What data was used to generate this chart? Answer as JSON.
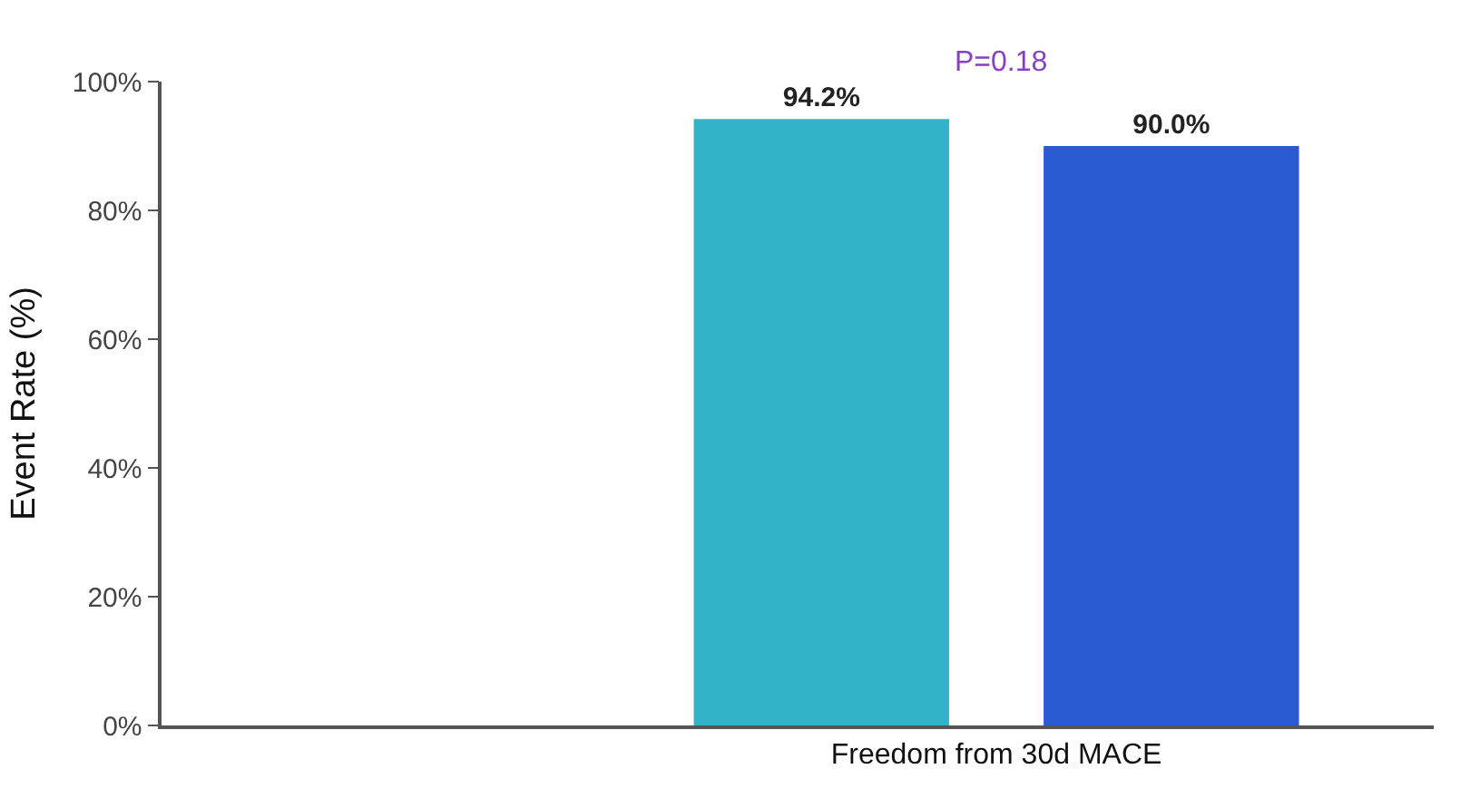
{
  "chart_data": {
    "type": "bar",
    "ylabel": "Event Rate (%)",
    "categories": [
      "Freedom from 30d MACE"
    ],
    "series": [
      {
        "color": "#33b4c6",
        "values": [
          94.2
        ],
        "value_labels": [
          "94.2%"
        ]
      },
      {
        "color": "#2b5bd3",
        "values": [
          90.0
        ],
        "value_labels": [
          "90.0%"
        ]
      }
    ],
    "ylim": [
      0,
      100
    ],
    "yticks": [
      {
        "value": 0,
        "label": "0%"
      },
      {
        "value": 20,
        "label": "20%"
      },
      {
        "value": 40,
        "label": "40%"
      },
      {
        "value": 60,
        "label": "60%"
      },
      {
        "value": 80,
        "label": "80%"
      },
      {
        "value": 100,
        "label": "100%"
      }
    ],
    "annotations": [
      "P=0.18"
    ]
  }
}
